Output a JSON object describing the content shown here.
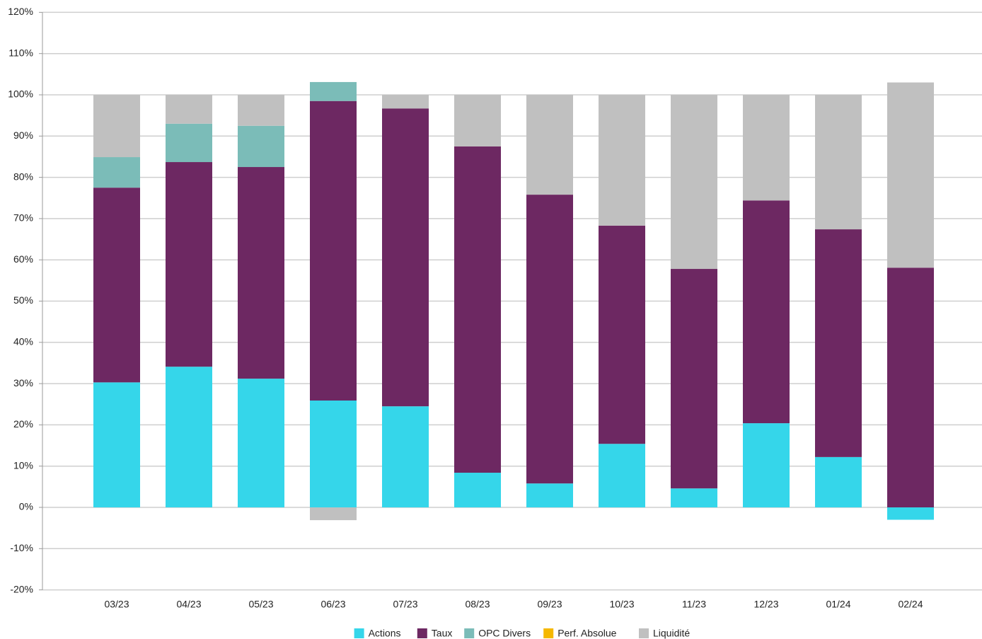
{
  "chart_data": {
    "type": "bar",
    "stacked": true,
    "categories": [
      "03/23",
      "04/23",
      "05/23",
      "06/23",
      "07/23",
      "08/23",
      "09/23",
      "10/23",
      "11/23",
      "12/23",
      "01/24",
      "02/24"
    ],
    "series": [
      {
        "name": "Actions",
        "color": "#35d6ea",
        "values": [
          30.3,
          34.1,
          31.2,
          25.9,
          24.5,
          8.4,
          5.8,
          15.4,
          4.6,
          20.4,
          12.2,
          -3.0
        ]
      },
      {
        "name": "Taux",
        "color": "#6d2862",
        "values": [
          47.2,
          49.6,
          51.3,
          72.6,
          72.2,
          79.1,
          70.0,
          52.9,
          53.2,
          54.0,
          55.2,
          58.1
        ]
      },
      {
        "name": "OPC Divers",
        "color": "#7bbcb8",
        "values": [
          7.4,
          9.3,
          10.0,
          4.6,
          0,
          0,
          0,
          0,
          0,
          0,
          0,
          0
        ]
      },
      {
        "name": "Perf. Absolue",
        "color": "#f5b800",
        "values": [
          0,
          0,
          0,
          0,
          0,
          0,
          0,
          0,
          0,
          0,
          0,
          0
        ]
      },
      {
        "name": "Liquidité",
        "color": "#c0c0c0",
        "values": [
          15.1,
          7.0,
          7.5,
          -3.1,
          3.3,
          12.5,
          24.2,
          31.7,
          42.2,
          25.6,
          32.6,
          44.9
        ]
      }
    ],
    "ylim": [
      -20,
      120
    ],
    "yticks": [
      {
        "value": -20,
        "label": "-20%"
      },
      {
        "value": -10,
        "label": "-10%"
      },
      {
        "value": 0,
        "label": "0%"
      },
      {
        "value": 10,
        "label": "10%"
      },
      {
        "value": 20,
        "label": "20%"
      },
      {
        "value": 30,
        "label": "30%"
      },
      {
        "value": 40,
        "label": "40%"
      },
      {
        "value": 50,
        "label": "50%"
      },
      {
        "value": 60,
        "label": "60%"
      },
      {
        "value": 70,
        "label": "70%"
      },
      {
        "value": 80,
        "label": "80%"
      },
      {
        "value": 90,
        "label": "90%"
      },
      {
        "value": 100,
        "label": "100%"
      },
      {
        "value": 110,
        "label": "110%"
      },
      {
        "value": 120,
        "label": "120%"
      }
    ],
    "grid": true,
    "legend": "bottom"
  }
}
